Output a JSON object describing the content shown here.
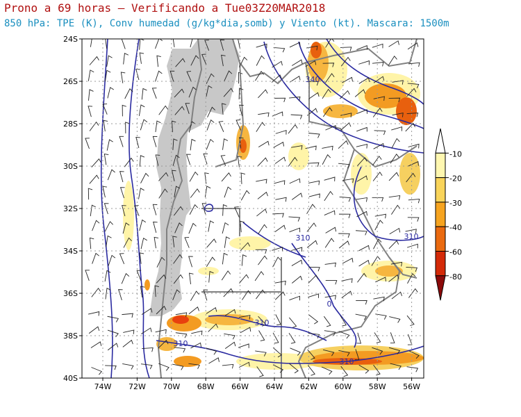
{
  "header": {
    "title": "Prono a 69 horas – Verificando a Tue03Z20MAR2018",
    "subtitle": "850 hPa: TPE (K), Conv humedad (g/kg*dia,somb) y Viento (kt). Mascara: 1500m"
  },
  "map": {
    "lat_labels": [
      "24S",
      "26S",
      "28S",
      "30S",
      "32S",
      "34S",
      "36S",
      "38S",
      "40S"
    ],
    "lon_labels": [
      "74W",
      "72W",
      "70W",
      "68W",
      "66W",
      "64W",
      "62W",
      "60W",
      "58W",
      "56W"
    ],
    "contour_labels": [
      "340",
      "310",
      "310",
      "310",
      "310",
      "310",
      "0"
    ]
  },
  "colorbar": {
    "labels": [
      "-10",
      "-20",
      "-30",
      "-40",
      "-60",
      "-80"
    ]
  }
}
